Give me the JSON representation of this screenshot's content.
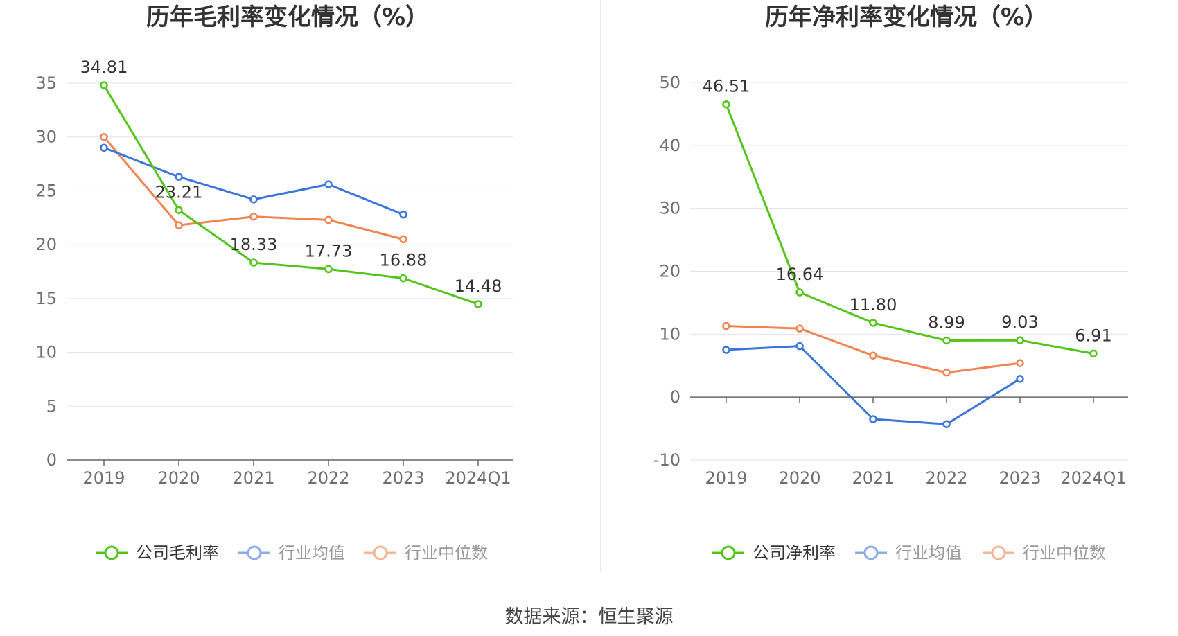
{
  "source_label": "数据来源：恒生聚源",
  "chart_data": [
    {
      "type": "line",
      "title": "历年毛利率变化情况（%）",
      "categories": [
        "2019",
        "2020",
        "2021",
        "2022",
        "2023",
        "2024Q1"
      ],
      "ylim": [
        0,
        35
      ],
      "yticks": [
        0,
        5,
        10,
        15,
        20,
        25,
        30,
        35
      ],
      "grid": true,
      "legend_position": "bottom",
      "series": [
        {
          "name": "公司毛利率",
          "color": "#52c41a",
          "values": [
            34.81,
            23.21,
            18.33,
            17.73,
            16.88,
            14.48
          ],
          "labels": [
            "34.81",
            "23.21",
            "18.33",
            "17.73",
            "16.88",
            "14.48"
          ]
        },
        {
          "name": "行业均值",
          "color": "#3a74dd",
          "values": [
            29.0,
            26.3,
            24.2,
            25.6,
            22.8,
            null
          ]
        },
        {
          "name": "行业中位数",
          "color": "#f0834f",
          "values": [
            30.0,
            21.8,
            22.6,
            22.3,
            20.5,
            null
          ]
        }
      ]
    },
    {
      "type": "line",
      "title": "历年净利率变化情况（%）",
      "categories": [
        "2019",
        "2020",
        "2021",
        "2022",
        "2023",
        "2024Q1"
      ],
      "ylim": [
        -10,
        50
      ],
      "yticks": [
        -10,
        0,
        10,
        20,
        30,
        40,
        50
      ],
      "grid": true,
      "legend_position": "bottom",
      "series": [
        {
          "name": "公司净利率",
          "color": "#52c41a",
          "values": [
            46.51,
            16.64,
            11.8,
            8.99,
            9.03,
            6.91
          ],
          "labels": [
            "46.51",
            "16.64",
            "11.80",
            "8.99",
            "9.03",
            "6.91"
          ]
        },
        {
          "name": "行业均值",
          "color": "#3a74dd",
          "values": [
            7.5,
            8.1,
            -3.5,
            -4.3,
            2.9,
            null
          ]
        },
        {
          "name": "行业中位数",
          "color": "#f0834f",
          "values": [
            11.3,
            10.9,
            6.6,
            3.9,
            5.4,
            null
          ]
        }
      ]
    }
  ]
}
